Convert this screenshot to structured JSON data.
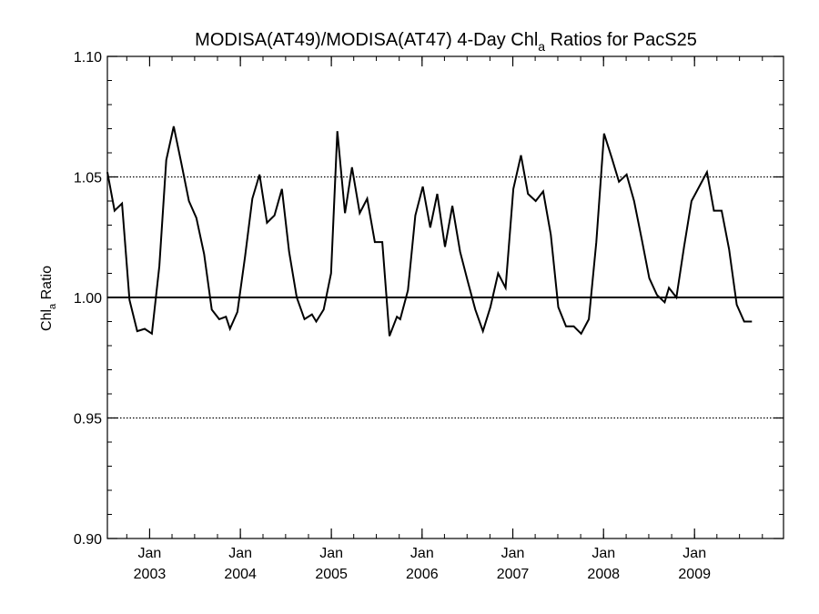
{
  "chart_data": {
    "type": "line",
    "title": {
      "pre": "MODISA(AT49)/MODISA(AT47) 4-Day Chl",
      "sub": "a",
      "post": " Ratios for PacS25"
    },
    "ylabel": {
      "pre": "Chl",
      "sub": "a",
      "post": " Ratio"
    },
    "xlim": [
      "2002-07-15",
      "2009-12-25"
    ],
    "ylim": [
      0.9,
      1.1
    ],
    "yticks": [
      {
        "value": 0.9,
        "label": "0.90"
      },
      {
        "value": 0.95,
        "label": "0.95"
      },
      {
        "value": 1.0,
        "label": "1.00"
      },
      {
        "value": 1.05,
        "label": "1.05"
      },
      {
        "value": 1.1,
        "label": "1.10"
      }
    ],
    "y_minor_step": 0.01,
    "xticks": [
      {
        "date": "2003-01-01",
        "month": "Jan",
        "year": "2003"
      },
      {
        "date": "2004-01-01",
        "month": "Jan",
        "year": "2004"
      },
      {
        "date": "2005-01-01",
        "month": "Jan",
        "year": "2005"
      },
      {
        "date": "2006-01-01",
        "month": "Jan",
        "year": "2006"
      },
      {
        "date": "2007-01-01",
        "month": "Jan",
        "year": "2007"
      },
      {
        "date": "2008-01-01",
        "month": "Jan",
        "year": "2008"
      },
      {
        "date": "2009-01-01",
        "month": "Jan",
        "year": "2009"
      }
    ],
    "x_minor": "quarterly",
    "grid": {
      "y_dotted_at": [
        0.95,
        1.05
      ],
      "y_solid_at": [
        1.0
      ]
    },
    "series": [
      {
        "color": "#000000",
        "points": [
          [
            "2002-07-15",
            1.052
          ],
          [
            "2002-08-13",
            1.036
          ],
          [
            "2002-09-12",
            1.039
          ],
          [
            "2002-10-12",
            0.999
          ],
          [
            "2002-11-12",
            0.986
          ],
          [
            "2002-12-12",
            0.987
          ],
          [
            "2003-01-10",
            0.985
          ],
          [
            "2003-02-09",
            1.013
          ],
          [
            "2003-03-09",
            1.057
          ],
          [
            "2003-04-08",
            1.071
          ],
          [
            "2003-05-08",
            1.056
          ],
          [
            "2003-06-08",
            1.04
          ],
          [
            "2003-07-08",
            1.033
          ],
          [
            "2003-08-08",
            1.018
          ],
          [
            "2003-09-08",
            0.995
          ],
          [
            "2003-10-08",
            0.991
          ],
          [
            "2003-11-04",
            0.992
          ],
          [
            "2003-11-20",
            0.987
          ],
          [
            "2003-12-20",
            0.994
          ],
          [
            "2004-01-20",
            1.017
          ],
          [
            "2004-02-18",
            1.041
          ],
          [
            "2004-03-18",
            1.051
          ],
          [
            "2004-04-17",
            1.031
          ],
          [
            "2004-05-17",
            1.034
          ],
          [
            "2004-06-16",
            1.045
          ],
          [
            "2004-07-15",
            1.019
          ],
          [
            "2004-08-15",
            1.0
          ],
          [
            "2004-09-15",
            0.991
          ],
          [
            "2004-10-15",
            0.993
          ],
          [
            "2004-11-01",
            0.99
          ],
          [
            "2004-12-01",
            0.995
          ],
          [
            "2004-12-31",
            1.01
          ],
          [
            "2005-01-25",
            1.069
          ],
          [
            "2005-02-25",
            1.035
          ],
          [
            "2005-03-25",
            1.054
          ],
          [
            "2005-04-25",
            1.035
          ],
          [
            "2005-05-25",
            1.041
          ],
          [
            "2005-06-25",
            1.023
          ],
          [
            "2005-07-25",
            1.023
          ],
          [
            "2005-08-23",
            0.984
          ],
          [
            "2005-09-22",
            0.992
          ],
          [
            "2005-10-05",
            0.991
          ],
          [
            "2005-11-05",
            1.003
          ],
          [
            "2005-12-05",
            1.034
          ],
          [
            "2006-01-04",
            1.046
          ],
          [
            "2006-02-03",
            1.029
          ],
          [
            "2006-03-03",
            1.043
          ],
          [
            "2006-04-03",
            1.021
          ],
          [
            "2006-05-03",
            1.038
          ],
          [
            "2006-06-03",
            1.019
          ],
          [
            "2006-07-03",
            1.007
          ],
          [
            "2006-08-03",
            0.995
          ],
          [
            "2006-09-03",
            0.986
          ],
          [
            "2006-10-03",
            0.996
          ],
          [
            "2006-11-03",
            1.01
          ],
          [
            "2006-12-03",
            1.004
          ],
          [
            "2007-01-03",
            1.045
          ],
          [
            "2007-02-03",
            1.059
          ],
          [
            "2007-03-03",
            1.043
          ],
          [
            "2007-04-03",
            1.04
          ],
          [
            "2007-05-03",
            1.044
          ],
          [
            "2007-06-03",
            1.026
          ],
          [
            "2007-07-03",
            0.996
          ],
          [
            "2007-08-03",
            0.988
          ],
          [
            "2007-09-03",
            0.988
          ],
          [
            "2007-10-03",
            0.985
          ],
          [
            "2007-11-03",
            0.991
          ],
          [
            "2007-12-03",
            1.023
          ],
          [
            "2008-01-03",
            1.068
          ],
          [
            "2008-02-03",
            1.058
          ],
          [
            "2008-03-03",
            1.048
          ],
          [
            "2008-04-03",
            1.051
          ],
          [
            "2008-05-03",
            1.04
          ],
          [
            "2008-06-03",
            1.024
          ],
          [
            "2008-07-03",
            1.008
          ],
          [
            "2008-08-03",
            1.001
          ],
          [
            "2008-09-03",
            0.998
          ],
          [
            "2008-09-20",
            1.004
          ],
          [
            "2008-10-20",
            1.0
          ],
          [
            "2008-11-20",
            1.021
          ],
          [
            "2008-12-20",
            1.04
          ],
          [
            "2009-01-20",
            1.046
          ],
          [
            "2009-02-20",
            1.052
          ],
          [
            "2009-03-20",
            1.036
          ],
          [
            "2009-04-20",
            1.036
          ],
          [
            "2009-05-20",
            1.02
          ],
          [
            "2009-06-20",
            0.997
          ],
          [
            "2009-07-20",
            0.99
          ],
          [
            "2009-08-20",
            0.99
          ]
        ]
      }
    ]
  }
}
